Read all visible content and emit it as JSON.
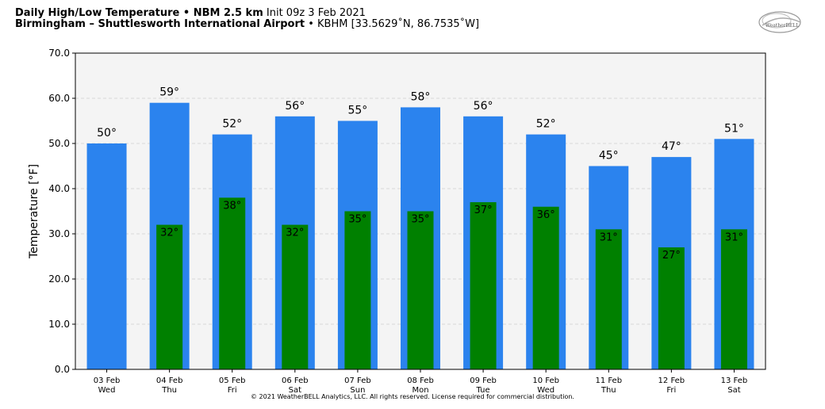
{
  "header": {
    "title_bold": "Daily High/Low Temperature • NBM 2.5 km",
    "title_init": "Init 09z 3 Feb 2021",
    "subtitle_bold": "Birmingham – Shuttlesworth International Airport",
    "subtitle_rest": "• KBHM [33.5629˚N, 86.7535˚W]",
    "logo_text": "WeatherBELL"
  },
  "footer": "© 2021 WeatherBELL Analytics, LLC. All rights reserved. License required for commercial distribution.",
  "colors": {
    "high_bar": "#2b83ee",
    "low_bar": "#008000",
    "plot_bg": "#f4f4f4"
  },
  "chart_data": {
    "type": "bar",
    "categories": [
      "03 Feb",
      "04 Feb",
      "05 Feb",
      "06 Feb",
      "07 Feb",
      "08 Feb",
      "09 Feb",
      "10 Feb",
      "11 Feb",
      "12 Feb",
      "13 Feb"
    ],
    "days": [
      "Wed",
      "Thu",
      "Fri",
      "Sat",
      "Sun",
      "Mon",
      "Tue",
      "Wed",
      "Thu",
      "Fri",
      "Sat"
    ],
    "series": [
      {
        "values": [
          50,
          59,
          52,
          56,
          55,
          58,
          56,
          52,
          45,
          47,
          51
        ],
        "labels": [
          "50°",
          "59°",
          "52°",
          "56°",
          "55°",
          "58°",
          "56°",
          "52°",
          "45°",
          "47°",
          "51°"
        ]
      },
      {
        "values": [
          null,
          32,
          38,
          32,
          35,
          35,
          37,
          36,
          31,
          27,
          31
        ],
        "labels": [
          "",
          "32°",
          "38°",
          "32°",
          "35°",
          "35°",
          "37°",
          "36°",
          "31°",
          "27°",
          "31°"
        ]
      }
    ],
    "ylabel": "Temperature [°F]",
    "xlabel": "",
    "ylim": [
      0,
      70
    ],
    "yticks": [
      "0.0",
      "10.0",
      "20.0",
      "30.0",
      "40.0",
      "50.0",
      "60.0",
      "70.0"
    ],
    "grid": true
  }
}
